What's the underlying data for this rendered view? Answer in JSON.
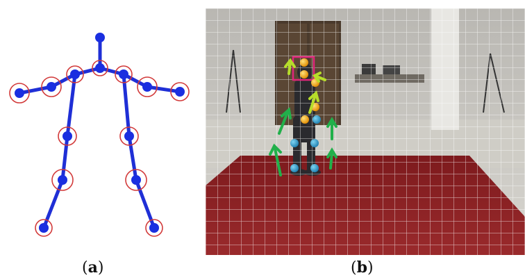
{
  "captions": {
    "a_open": "(",
    "a_letter": "a",
    "a_close": ")",
    "b_open": "(",
    "b_letter": "b",
    "b_close": ")"
  },
  "colors": {
    "bone": "#1f2fd6",
    "joint": "#1a2fe0",
    "ring": "#d23a3a",
    "floor": "#8a1f22",
    "grid": "#ffffff",
    "head_box": "#e0267a",
    "orange_joint": "#f0a000",
    "cyan_joint": "#2a9fd0",
    "arrow_green": "#21b04a",
    "arrow_yellow": "#b6dd2a"
  },
  "icons": {
    "skeleton": "stick-figure-skeleton-icon",
    "photo": "motion-capture-scene"
  }
}
